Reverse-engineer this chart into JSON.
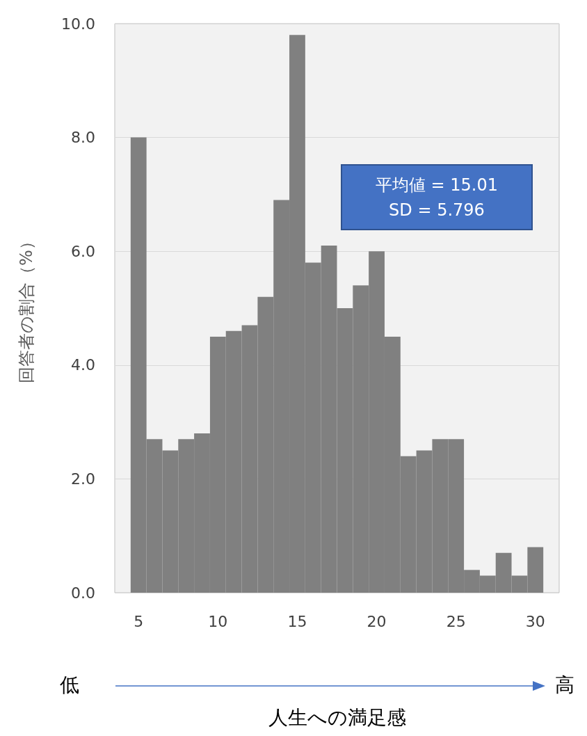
{
  "chart_data": {
    "type": "histogram",
    "xlabel": "人生への満足感",
    "ylabel": "回答者の割合（%）",
    "bins": [
      4.5,
      5.5,
      6.5,
      7.5,
      8.5,
      9.5,
      10.5,
      11.5,
      12.5,
      13.5,
      14.5,
      15.5,
      16.5,
      17.5,
      18.5,
      19.5,
      20.5,
      21.5,
      22.5,
      23.5,
      24.5,
      25.5,
      26.5,
      27.5,
      28.5,
      29.5,
      30.5
    ],
    "values": [
      8.0,
      2.7,
      2.5,
      2.7,
      2.8,
      4.5,
      4.6,
      4.7,
      5.2,
      6.9,
      9.8,
      5.8,
      6.1,
      5.0,
      5.4,
      6.0,
      4.5,
      2.4,
      2.5,
      2.7,
      2.7,
      0.4,
      0.3,
      0.7,
      0.3,
      0.8
    ],
    "color": "#808080",
    "xlim": [
      3.5,
      31.5
    ],
    "xticks": [
      5,
      10,
      15,
      20,
      25,
      30
    ],
    "ylim": [
      0,
      10
    ],
    "yticks": [
      {
        "value": 0,
        "label": "0.0"
      },
      {
        "value": 2,
        "label": "2.0"
      },
      {
        "value": 4,
        "label": "4.0"
      },
      {
        "value": 6,
        "label": "6.0"
      },
      {
        "value": 8,
        "label": "8.0"
      },
      {
        "value": 10,
        "label": "10.0"
      }
    ],
    "grid": "y",
    "annotations": [
      "平均値 = 15.01",
      "SD = 5.796",
      "低",
      "高"
    ]
  }
}
